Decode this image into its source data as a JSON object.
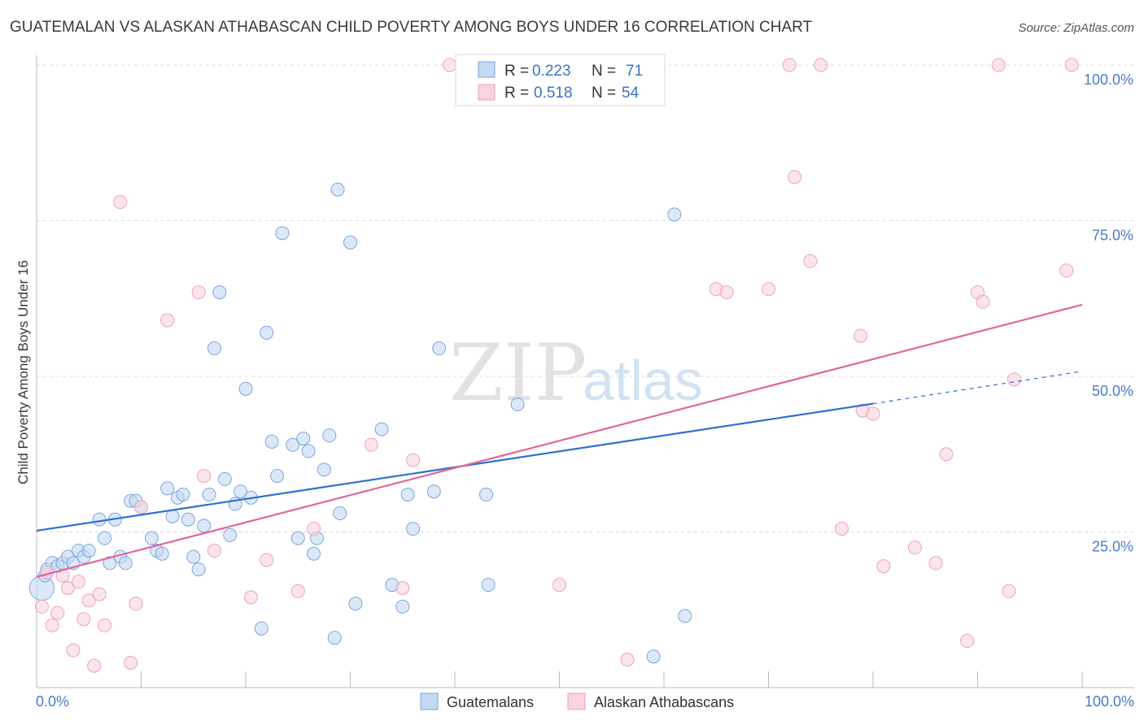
{
  "chart_data": {
    "type": "scatter",
    "title": "GUATEMALAN VS ALASKAN ATHABASCAN CHILD POVERTY AMONG BOYS UNDER 16 CORRELATION CHART",
    "source": "Source: ZipAtlas.com",
    "xlabel": "",
    "ylabel": "Child Poverty Among Boys Under 16",
    "xlim": [
      0,
      100
    ],
    "ylim": [
      0,
      100
    ],
    "x_tick_labels": [
      "0.0%",
      "100.0%"
    ],
    "y_tick_labels": [
      "25.0%",
      "50.0%",
      "75.0%",
      "100.0%"
    ],
    "y_tick_values": [
      25,
      50,
      75,
      100
    ],
    "grid": true,
    "legend": {
      "position": "top-center",
      "rows": [
        {
          "r_label": "R = ",
          "r_value": "0.223",
          "n_label": "N = ",
          "n_value": "71"
        },
        {
          "r_label": "R = ",
          "r_value": "0.518",
          "n_label": "N = ",
          "n_value": "54"
        }
      ]
    },
    "watermark": {
      "zip": "ZIP",
      "atlas": "atlas"
    },
    "series": [
      {
        "name": "Guatemalans",
        "color": "#7aa6e0",
        "fill": "#c4d9f3",
        "line_color": "#2f6fd0",
        "trend": {
          "x0": 0,
          "y0": 25.2,
          "x1": 80,
          "y1": 45.6,
          "dash_to": 100,
          "dash_y": 50.8
        },
        "points": [
          [
            0.5,
            16
          ],
          [
            0.8,
            18
          ],
          [
            1,
            19
          ],
          [
            1.5,
            20
          ],
          [
            2,
            19.5
          ],
          [
            2.5,
            20
          ],
          [
            3,
            21
          ],
          [
            3.5,
            20
          ],
          [
            4,
            22
          ],
          [
            4.5,
            21
          ],
          [
            5,
            22
          ],
          [
            6,
            27
          ],
          [
            6.5,
            24
          ],
          [
            7,
            20
          ],
          [
            7.5,
            27
          ],
          [
            8,
            21
          ],
          [
            8.5,
            20
          ],
          [
            9,
            30
          ],
          [
            9.5,
            30
          ],
          [
            10,
            29
          ],
          [
            11,
            24
          ],
          [
            11.5,
            22
          ],
          [
            12,
            21.5
          ],
          [
            12.5,
            32
          ],
          [
            13,
            27.5
          ],
          [
            13.5,
            30.5
          ],
          [
            14,
            31
          ],
          [
            14.5,
            27
          ],
          [
            15,
            21
          ],
          [
            15.5,
            19
          ],
          [
            16,
            26
          ],
          [
            16.5,
            31
          ],
          [
            17,
            54.5
          ],
          [
            17.5,
            63.5
          ],
          [
            18,
            33.5
          ],
          [
            18.5,
            24.5
          ],
          [
            19,
            29.5
          ],
          [
            19.5,
            31.5
          ],
          [
            20,
            48
          ],
          [
            20.5,
            30.5
          ],
          [
            21.5,
            9.5
          ],
          [
            22,
            57
          ],
          [
            22.5,
            39.5
          ],
          [
            23,
            34
          ],
          [
            23.5,
            73
          ],
          [
            24.5,
            39
          ],
          [
            25,
            24
          ],
          [
            25.5,
            40
          ],
          [
            26,
            38
          ],
          [
            26.5,
            21.5
          ],
          [
            26.8,
            24
          ],
          [
            27.5,
            35
          ],
          [
            28,
            40.5
          ],
          [
            28.5,
            8
          ],
          [
            29,
            28
          ],
          [
            30,
            71.5
          ],
          [
            28.8,
            80
          ],
          [
            30.5,
            13.5
          ],
          [
            33,
            41.5
          ],
          [
            34,
            16.5
          ],
          [
            35,
            13
          ],
          [
            35.5,
            31
          ],
          [
            36,
            25.5
          ],
          [
            38,
            31.5
          ],
          [
            38.5,
            54.5
          ],
          [
            43,
            31
          ],
          [
            43.2,
            16.5
          ],
          [
            46,
            45.5
          ],
          [
            59,
            5
          ],
          [
            61,
            76
          ],
          [
            62,
            11.5
          ]
        ]
      },
      {
        "name": "Alaskan Athabascans",
        "color": "#eea2bb",
        "fill": "#f9d3df",
        "line_color": "#e0679a",
        "trend": {
          "x0": 0,
          "y0": 17.8,
          "x1": 100,
          "y1": 61.5
        },
        "points": [
          [
            0.5,
            13
          ],
          [
            1,
            18.5
          ],
          [
            1.5,
            10
          ],
          [
            2,
            12
          ],
          [
            2.5,
            18
          ],
          [
            3,
            16
          ],
          [
            3.5,
            6
          ],
          [
            4,
            17
          ],
          [
            4.5,
            11
          ],
          [
            5,
            14
          ],
          [
            5.5,
            3.5
          ],
          [
            6,
            15
          ],
          [
            6.5,
            10
          ],
          [
            8,
            78
          ],
          [
            9,
            4
          ],
          [
            9.5,
            13.5
          ],
          [
            10,
            29
          ],
          [
            12.5,
            59
          ],
          [
            15.5,
            63.5
          ],
          [
            16,
            34
          ],
          [
            17,
            22
          ],
          [
            20.5,
            14.5
          ],
          [
            22,
            20.5
          ],
          [
            25,
            15.5
          ],
          [
            26.5,
            25.5
          ],
          [
            32,
            39
          ],
          [
            35,
            16
          ],
          [
            36,
            36.5
          ],
          [
            39.5,
            100
          ],
          [
            50,
            16.5
          ],
          [
            56.5,
            4.5
          ],
          [
            65,
            64
          ],
          [
            66,
            63.5
          ],
          [
            70,
            64
          ],
          [
            72,
            100
          ],
          [
            72.5,
            82
          ],
          [
            75,
            100
          ],
          [
            74,
            68.5
          ],
          [
            77,
            25.5
          ],
          [
            79,
            44.5
          ],
          [
            80,
            44
          ],
          [
            78.8,
            56.5
          ],
          [
            81,
            19.5
          ],
          [
            84,
            22.5
          ],
          [
            86,
            20
          ],
          [
            87,
            37.5
          ],
          [
            89,
            7.5
          ],
          [
            90,
            63.5
          ],
          [
            90.5,
            62
          ],
          [
            92,
            100
          ],
          [
            93,
            15.5
          ],
          [
            93.5,
            49.5
          ],
          [
            98.5,
            67
          ],
          [
            99,
            100
          ]
        ]
      }
    ]
  }
}
